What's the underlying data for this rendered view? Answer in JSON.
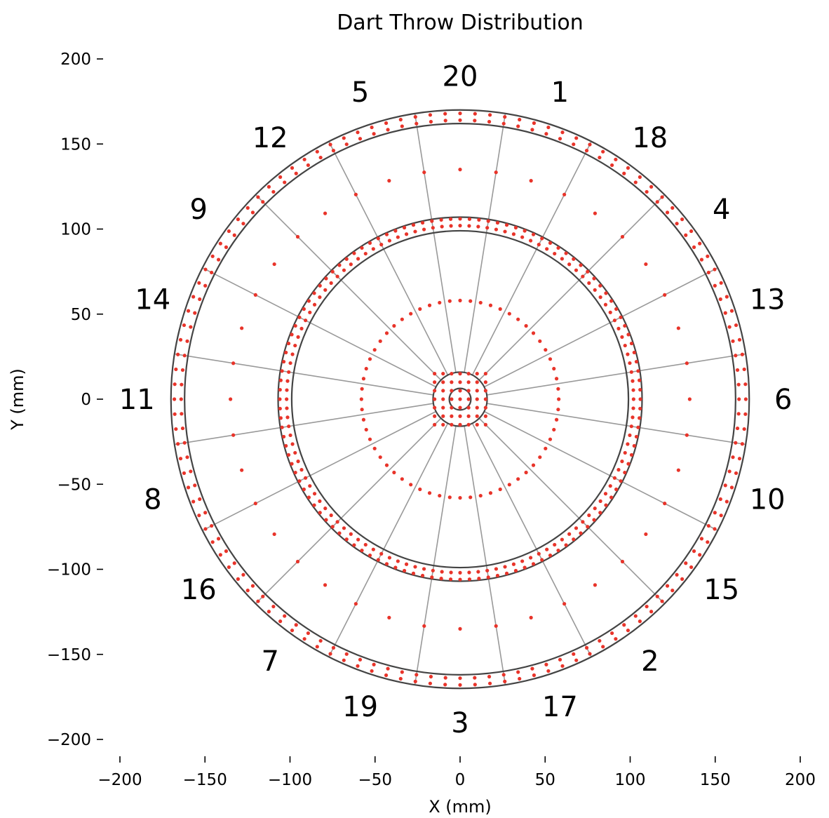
{
  "chart_data": {
    "type": "scatter",
    "title": "Dart Throw Distribution",
    "xlabel": "X (mm)",
    "ylabel": "Y (mm)",
    "xlim": [
      -200,
      200
    ],
    "ylim": [
      -200,
      200
    ],
    "xticks": [
      -200,
      -150,
      -100,
      -50,
      0,
      50,
      100,
      150,
      200
    ],
    "yticks": [
      -200,
      -150,
      -100,
      -50,
      0,
      50,
      100,
      150,
      200
    ],
    "xtick_labels": [
      "−200",
      "−150",
      "−100",
      "−50",
      "0",
      "50",
      "100",
      "150",
      "200"
    ],
    "ytick_labels": [
      "−200",
      "−150",
      "−100",
      "−50",
      "0",
      "50",
      "100",
      "150",
      "200"
    ],
    "grid": false,
    "board": {
      "ring_radii_mm": [
        6.35,
        15.9,
        99,
        107,
        162,
        170
      ],
      "segment_order": [
        20,
        1,
        18,
        4,
        13,
        6,
        10,
        15,
        2,
        17,
        3,
        19,
        7,
        16,
        8,
        11,
        14,
        9,
        12,
        5
      ],
      "segment_labels": [
        "20",
        "1",
        "18",
        "4",
        "13",
        "6",
        "10",
        "15",
        "2",
        "17",
        "3",
        "19",
        "7",
        "16",
        "8",
        "11",
        "14",
        "9",
        "12",
        "5"
      ]
    },
    "throw_pattern": {
      "center_grid": {
        "x_range": [
          -15,
          15
        ],
        "y_range": [
          -15,
          15
        ],
        "step": 5
      },
      "rings": [
        {
          "radius": 58,
          "count": 60
        },
        {
          "radius": 102,
          "count": 120
        },
        {
          "radius": 106,
          "count": 120
        },
        {
          "radius": 135,
          "count": 40
        },
        {
          "radius": 164,
          "count": 120
        },
        {
          "radius": 168,
          "count": 120
        }
      ]
    },
    "colors": {
      "throws": "#e8342a",
      "wire_circle": "#444444",
      "wire_line": "#999999"
    }
  }
}
